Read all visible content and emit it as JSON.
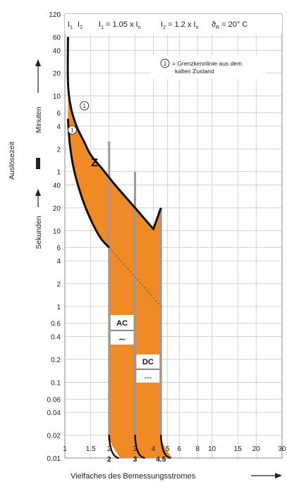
{
  "chart_data": {
    "type": "area",
    "title": "",
    "header": {
      "i1": "I",
      "i1_sub": "1",
      "i2": "I",
      "i2_sub": "2",
      "eq1_pre": "I",
      "eq1_sub": "1",
      "eq1_post": " = 1.05 x I",
      "eq1_post_sub": "n",
      "eq2_pre": "I",
      "eq2_sub": "2",
      "eq2_post": " = 1.2 x I",
      "eq2_post_sub": "n",
      "temp_pre": "ϑ",
      "temp_sub": "R",
      "temp_post": " = 20° C"
    },
    "note_number": "1",
    "note_lines": [
      "= Grenzkennlinie aus dem",
      "kalten Zustand"
    ],
    "ylabel": "Auslösezeit",
    "y_minutes_label": "Minuten",
    "y_seconds_label": "Sekunden",
    "xlabel": "Vielfaches des Bemessungsstromes",
    "x_scale": "log",
    "xlim": [
      1,
      30
    ],
    "x_ticks": [
      {
        "v": 1,
        "label": "1",
        "bold": false
      },
      {
        "v": 1.5,
        "label": "1.5",
        "bold": false
      },
      {
        "v": 2,
        "label": "2",
        "bold": false
      },
      {
        "v": 3,
        "label": "3",
        "bold": false
      },
      {
        "v": 4,
        "label": "4",
        "bold": false
      },
      {
        "v": 5,
        "label": "5",
        "bold": false
      },
      {
        "v": 6,
        "label": "6",
        "bold": false
      },
      {
        "v": 8,
        "label": "8",
        "bold": false
      },
      {
        "v": 10,
        "label": "10",
        "bold": false
      },
      {
        "v": 15,
        "label": "15",
        "bold": false
      },
      {
        "v": 20,
        "label": "20",
        "bold": false
      },
      {
        "v": 30,
        "label": "30",
        "bold": false
      }
    ],
    "x_ticks_bold": [
      {
        "v": 2,
        "label": "2"
      },
      {
        "v": 3,
        "label": "3"
      },
      {
        "v": 4.5,
        "label": "4.5"
      }
    ],
    "y_scale": "log",
    "ylim_seconds": [
      0.01,
      7200
    ],
    "y_ticks": [
      {
        "s": 7200,
        "label": "120"
      },
      {
        "s": 3600,
        "label": "60"
      },
      {
        "s": 2400,
        "label": "40"
      },
      {
        "s": 1200,
        "label": "20"
      },
      {
        "s": 600,
        "label": "10"
      },
      {
        "s": 360,
        "label": "6"
      },
      {
        "s": 240,
        "label": "4"
      },
      {
        "s": 120,
        "label": "2"
      },
      {
        "s": 60,
        "label": "1"
      },
      {
        "s": 40,
        "label": "40"
      },
      {
        "s": 20,
        "label": "20"
      },
      {
        "s": 10,
        "label": "10"
      },
      {
        "s": 6,
        "label": "6"
      },
      {
        "s": 4,
        "label": "4"
      },
      {
        "s": 2,
        "label": "2"
      },
      {
        "s": 1,
        "label": "1"
      },
      {
        "s": 0.6,
        "label": "0.6"
      },
      {
        "s": 0.4,
        "label": "0.4"
      },
      {
        "s": 0.2,
        "label": "0.2"
      },
      {
        "s": 0.1,
        "label": "0.1"
      },
      {
        "s": 0.06,
        "label": "0.06"
      },
      {
        "s": 0.04,
        "label": "0.04"
      },
      {
        "s": 0.02,
        "label": "0.02"
      },
      {
        "s": 0.01,
        "label": "0.01"
      }
    ],
    "series": [
      {
        "name": "",
        "role": "upper_limit",
        "x": [
          1.05,
          1.05,
          1.1,
          1.2,
          1.35,
          1.5,
          1.8,
          2.2,
          3.0,
          4.0,
          4.5
        ],
        "y": [
          3600,
          900,
          420,
          240,
          150,
          100,
          65,
          40,
          20,
          10.5,
          20
        ]
      },
      {
        "name": "",
        "role": "lower_limit",
        "x": [
          1.05,
          1.08,
          1.15,
          1.3,
          1.5,
          1.75,
          2.0
        ],
        "y": [
          300,
          140,
          65,
          28,
          14,
          8,
          6
        ]
      }
    ],
    "trip_lines": [
      {
        "x": 2,
        "y_top": 150,
        "y_bottom": 0.015
      },
      {
        "x": 3,
        "y_top": 60,
        "y_bottom": 0.015
      },
      {
        "x": 4.5,
        "y_top": 20,
        "y_bottom": 0.015
      }
    ],
    "dotted_line": {
      "x": [
        2,
        4.5
      ],
      "y": [
        6,
        1
      ]
    },
    "region_label": "Z",
    "ac_label": "AC",
    "ac_symbol": "∼",
    "dc_label": "DC",
    "dc_symbol": "⎓",
    "fill_color": "#f08a24",
    "curve_color": "#111111",
    "trip_line_color": "#9a9a9a",
    "dotted_color": "#a06a40"
  }
}
